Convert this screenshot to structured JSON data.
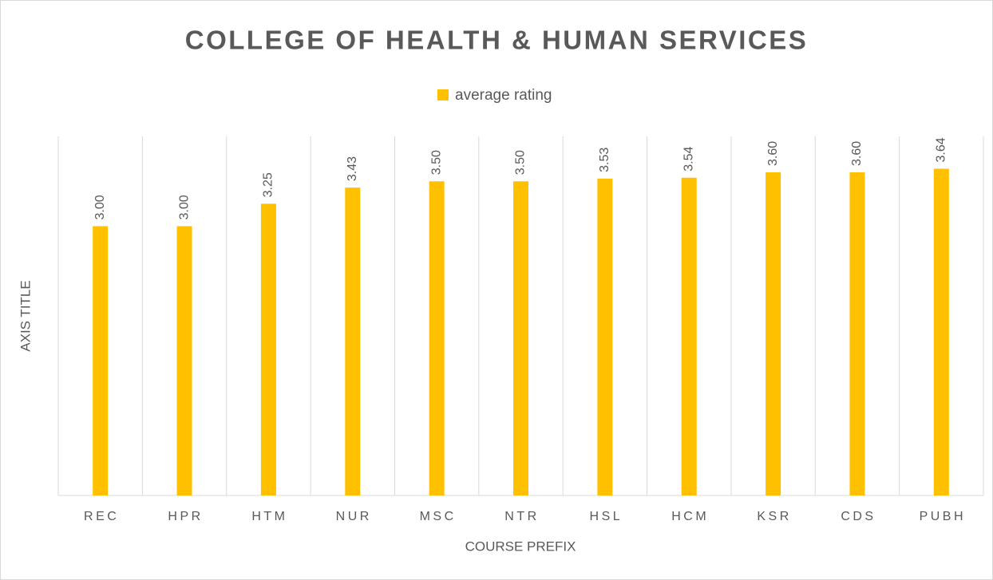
{
  "chart_data": {
    "type": "bar",
    "title": "COLLEGE OF HEALTH & HUMAN SERVICES",
    "x_label": "COURSE PREFIX",
    "y_label": "AXIS TITLE",
    "categories": [
      "REC",
      "HPR",
      "HTM",
      "NUR",
      "MSC",
      "NTR",
      "HSL",
      "HCM",
      "KSR",
      "CDS",
      "PUBH"
    ],
    "series": [
      {
        "name": "average rating",
        "color": "#ffc000",
        "values": [
          3,
          3,
          3.25,
          3.43,
          3.5,
          3.5,
          3.53,
          3.54,
          3.6,
          3.6,
          3.64
        ],
        "value_labels": [
          "3.00",
          "3.00",
          "3.25",
          "3.43",
          "3.50",
          "3.50",
          "3.53",
          "3.54",
          "3.60",
          "3.60",
          "3.64"
        ]
      }
    ],
    "ylim": [
      0,
      4
    ],
    "legend": "top"
  }
}
